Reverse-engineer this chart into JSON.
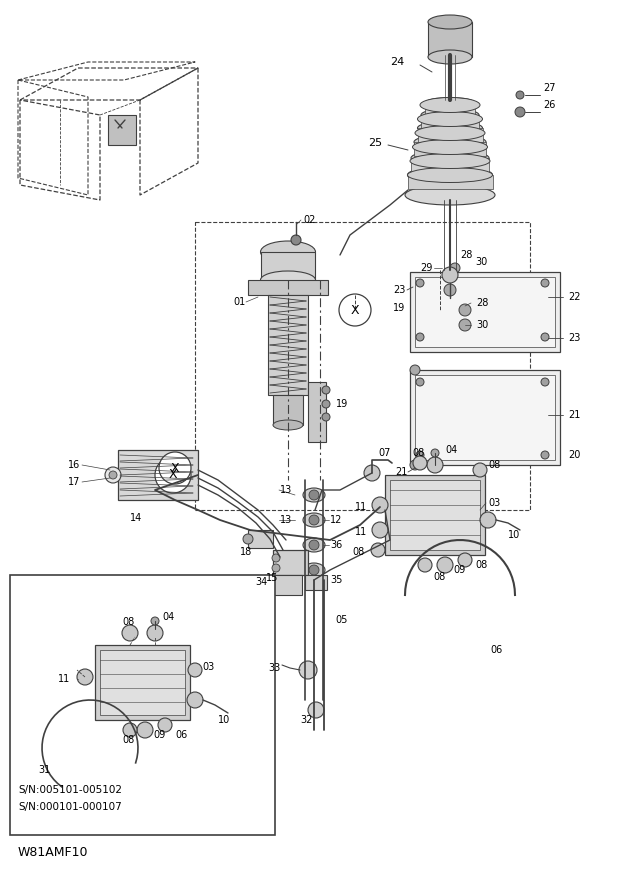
{
  "bg_color": "#ffffff",
  "line_color": "#404040",
  "text_color": "#000000",
  "fig_width": 6.2,
  "fig_height": 8.73,
  "dpi": 100,
  "watermark": "W81AMF10",
  "sn_lines": [
    "S/N:005101-005102",
    "S/N:000101-000107"
  ]
}
